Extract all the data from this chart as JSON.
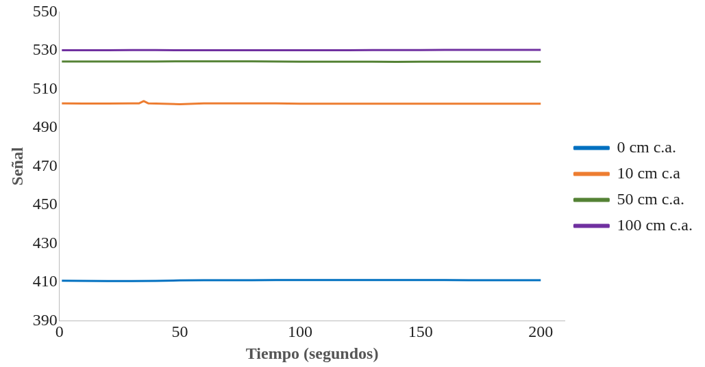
{
  "chart_data": {
    "type": "line",
    "xlabel": "Tiempo (segundos)",
    "ylabel": "Señal",
    "xlim": [
      0,
      210
    ],
    "xticks": [
      0,
      50,
      100,
      150,
      200
    ],
    "ylim": [
      390,
      550
    ],
    "yticks": [
      390,
      410,
      430,
      450,
      470,
      490,
      510,
      530,
      550
    ],
    "grid": false,
    "legend": "right",
    "marker": "none",
    "line_style": "solid",
    "series": [
      {
        "name": "0 cm c.a.",
        "color": "#0070c0",
        "x": [
          1,
          10,
          20,
          30,
          40,
          50,
          60,
          70,
          80,
          90,
          100,
          110,
          120,
          130,
          140,
          150,
          160,
          170,
          180,
          190,
          200
        ],
        "values": [
          410.8,
          410.7,
          410.6,
          410.6,
          410.7,
          410.9,
          411,
          411,
          411,
          411.1,
          411.1,
          411.1,
          411.1,
          411.1,
          411.1,
          411.1,
          411.1,
          411,
          411,
          411,
          411
        ]
      },
      {
        "name": "10 cm c.a",
        "color": "#ed7d31",
        "x": [
          1,
          10,
          20,
          30,
          33,
          35,
          37,
          40,
          50,
          60,
          70,
          80,
          90,
          100,
          110,
          120,
          130,
          140,
          150,
          160,
          170,
          180,
          190,
          200
        ],
        "values": [
          502.6,
          502.5,
          502.5,
          502.6,
          502.6,
          503.8,
          502.6,
          502.5,
          502.2,
          502.6,
          502.6,
          502.6,
          502.6,
          502.4,
          502.4,
          502.4,
          502.4,
          502.4,
          502.4,
          502.4,
          502.4,
          502.4,
          502.4,
          502.4
        ]
      },
      {
        "name": "50 cm c.a.",
        "color": "#548235",
        "x": [
          1,
          10,
          20,
          30,
          40,
          50,
          60,
          70,
          80,
          90,
          100,
          110,
          120,
          130,
          140,
          150,
          160,
          170,
          180,
          190,
          200
        ],
        "values": [
          524.3,
          524.3,
          524.3,
          524.3,
          524.3,
          524.4,
          524.4,
          524.4,
          524.4,
          524.3,
          524.2,
          524.2,
          524.2,
          524.2,
          524.1,
          524.2,
          524.2,
          524.2,
          524.2,
          524.2,
          524.2
        ]
      },
      {
        "name": "100 cm c.a.",
        "color": "#7030a0",
        "x": [
          1,
          10,
          20,
          30,
          40,
          50,
          60,
          70,
          80,
          90,
          100,
          110,
          120,
          130,
          140,
          150,
          160,
          170,
          180,
          190,
          200
        ],
        "values": [
          530.1,
          530.1,
          530.1,
          530.2,
          530.2,
          530.1,
          530.1,
          530.1,
          530.1,
          530.1,
          530.1,
          530.1,
          530.1,
          530.2,
          530.2,
          530.2,
          530.3,
          530.3,
          530.3,
          530.3,
          530.3
        ]
      }
    ]
  }
}
